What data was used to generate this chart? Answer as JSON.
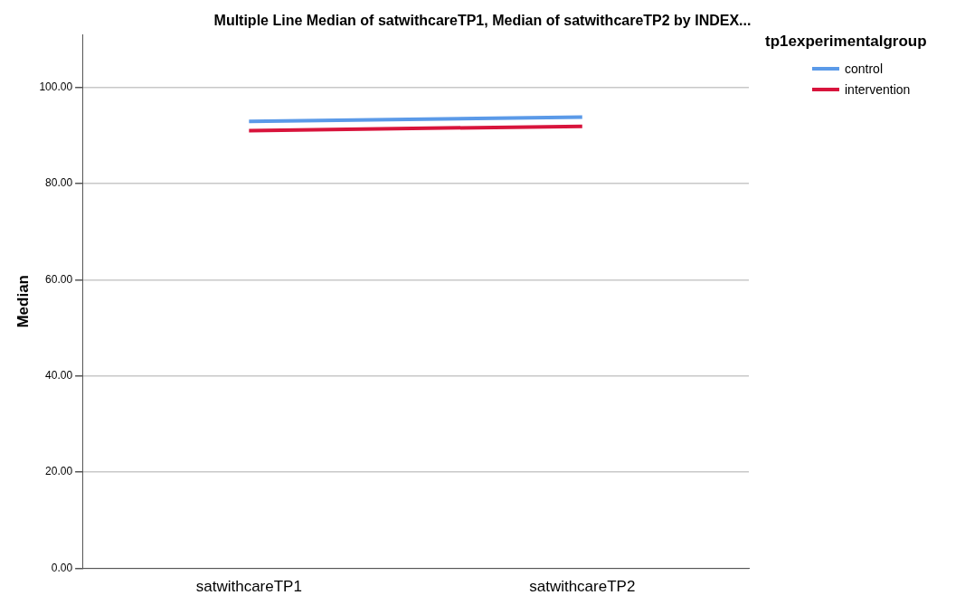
{
  "chart_data": {
    "type": "line",
    "title": "Multiple Line Median of satwithcareTP1, Median of satwithcareTP2 by INDEX...",
    "ylabel": "Median",
    "legend_title": "tp1experimentalgroup",
    "categories": [
      "satwithcareTP1",
      "satwithcareTP2"
    ],
    "series": [
      {
        "name": "control",
        "color": "#5b9ae8",
        "values": [
          92.9,
          93.8
        ]
      },
      {
        "name": "intervention",
        "color": "#d8143c",
        "values": [
          91.0,
          91.9
        ]
      }
    ],
    "ylim": [
      0,
      111
    ],
    "yticks": [
      {
        "value": 0,
        "label": "0.00"
      },
      {
        "value": 20,
        "label": "20.00"
      },
      {
        "value": 40,
        "label": "40.00"
      },
      {
        "value": 60,
        "label": "60.00"
      },
      {
        "value": 80,
        "label": "80.00"
      },
      {
        "value": 100,
        "label": "100.00"
      }
    ],
    "grid": "y",
    "legend": "top right",
    "marker": "none"
  }
}
